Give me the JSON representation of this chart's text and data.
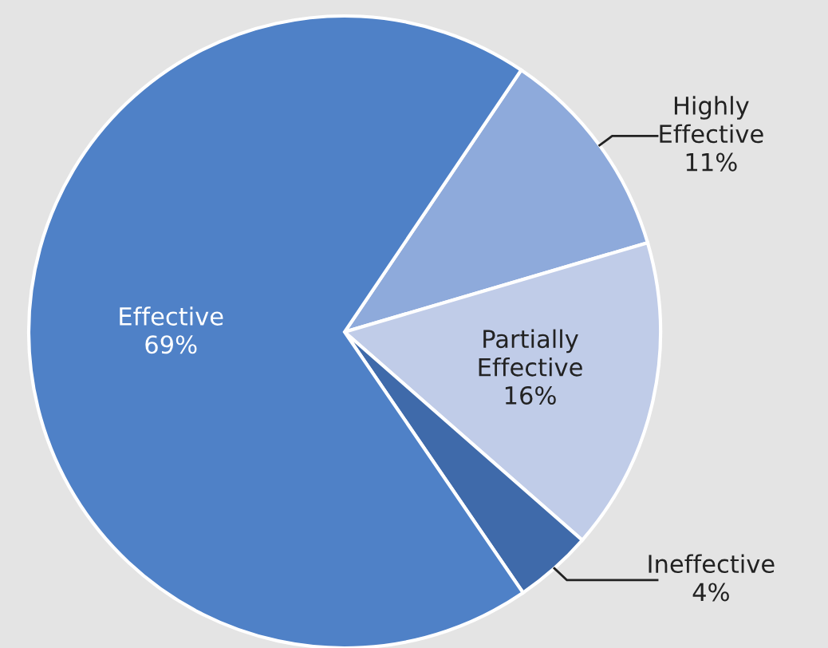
{
  "chart_data": {
    "type": "pie",
    "categories": [
      "Highly Effective",
      "Partially Effective",
      "Ineffective",
      "Effective"
    ],
    "values": [
      11,
      16,
      4,
      69
    ],
    "value_labels": [
      "11%",
      "16%",
      "4%",
      "69%"
    ],
    "colors": [
      "#8eaadb",
      "#c0cce8",
      "#3f6aaa",
      "#4f81c7"
    ]
  }
}
